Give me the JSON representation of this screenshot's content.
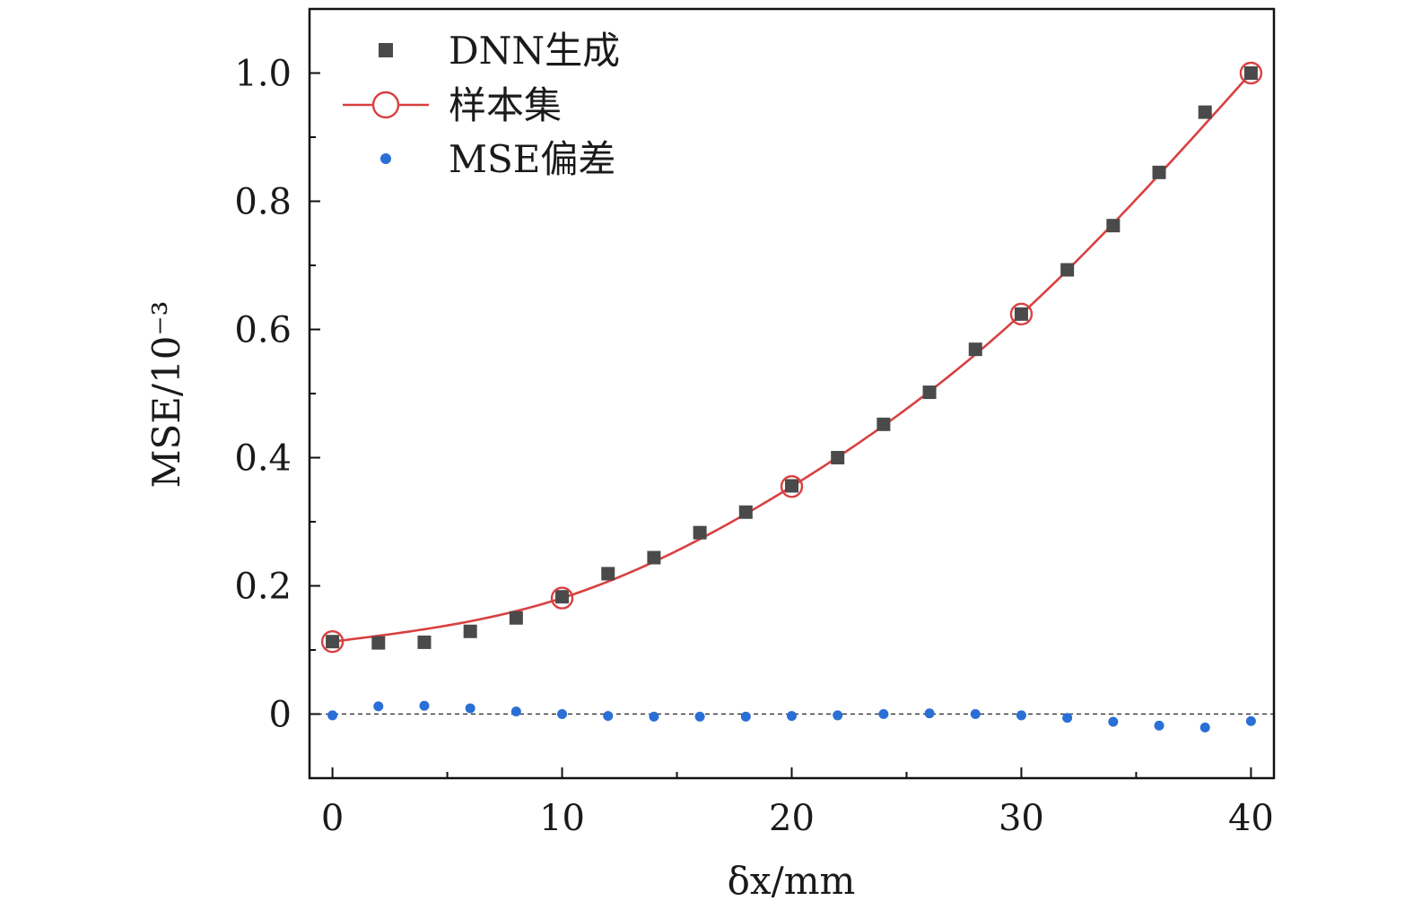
{
  "chart_data": {
    "type": "scatter",
    "xlabel": "δx/mm",
    "ylabel": "MSE/10⁻³",
    "xlim": [
      -1,
      41
    ],
    "ylim": [
      -0.1,
      1.1
    ],
    "x_ticks": [
      "0",
      "10",
      "20",
      "30",
      "40"
    ],
    "y_ticks": [
      "0",
      "0.2",
      "0.4",
      "0.6",
      "0.8",
      "1.0"
    ],
    "grid": false,
    "legend_position": "top-left",
    "zero_reference_line": true,
    "series": [
      {
        "name": "DNN生成",
        "marker": "square",
        "color": "#4a4a4a",
        "x": [
          0,
          2,
          4,
          6,
          8,
          10,
          12,
          14,
          16,
          18,
          20,
          22,
          24,
          26,
          28,
          30,
          32,
          34,
          36,
          38,
          40
        ],
        "y": [
          0.113,
          0.111,
          0.112,
          0.129,
          0.15,
          0.183,
          0.219,
          0.244,
          0.283,
          0.315,
          0.356,
          0.4,
          0.452,
          0.502,
          0.569,
          0.624,
          0.693,
          0.762,
          0.845,
          0.939,
          1.0
        ]
      },
      {
        "name": "样本集",
        "marker": "open-circle-line",
        "color": "#d94040",
        "x": [
          0,
          10,
          20,
          30,
          40
        ],
        "y": [
          0.113,
          0.181,
          0.355,
          0.624,
          1.0
        ]
      },
      {
        "name": "MSE偏差",
        "marker": "dot",
        "color": "#2a6fd6",
        "x": [
          0,
          2,
          4,
          6,
          8,
          10,
          12,
          14,
          16,
          18,
          20,
          22,
          24,
          26,
          28,
          30,
          32,
          34,
          36,
          38,
          40
        ],
        "y": [
          -0.002,
          0.012,
          0.013,
          0.009,
          0.004,
          0.0,
          -0.003,
          -0.004,
          -0.004,
          -0.004,
          -0.003,
          -0.002,
          0.0,
          0.001,
          0.0,
          -0.002,
          -0.006,
          -0.012,
          -0.018,
          -0.021,
          -0.011
        ]
      }
    ]
  }
}
